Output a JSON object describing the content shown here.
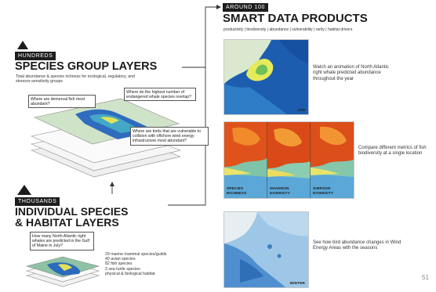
{
  "smart_products": {
    "tag": "AROUND 100",
    "title": "SMART DATA PRODUCTS",
    "subtitle": "productivity | biodiversity | abundance | vulnerability | rarity | habitat drivers",
    "panel1": {
      "caption": "Watch an animation of North Atlantic right whale predicted abundance throughout the year",
      "label": "JAN"
    },
    "panel2": {
      "caption": "Compare different metrics of fish biodiversity at a single location",
      "labels": [
        "SPECIES RICHNESS",
        "SHANNON DIVERSITY",
        "SIMPSON DIVERSITY"
      ]
    },
    "panel3": {
      "caption": "See how bird abundance changes in Wind Energy Areas with the seasons",
      "label": "WINTER"
    }
  },
  "species_group": {
    "tag": "HUNDREDS",
    "title": "SPECIES GROUP LAYERS",
    "subtitle": "Total abundance & species richness for ecological, regulatory, and stressor-sensitivity groups",
    "questions": [
      "Where are demersal fish most abundant?",
      "Where do the highest number of endangered whale species overlap?",
      "Where are birds that are vulnerable to collision with offshore wind energy infrastructure most abundant?"
    ]
  },
  "individual": {
    "tag": "THOUSANDS",
    "title_line1": "INDIVIDUAL SPECIES",
    "title_line2": "& HABITAT LAYERS",
    "question": "How many North Atlantic right whales are predicted in the Gulf of Maine in July?",
    "list": [
      "29 marine mammal species/guilds",
      "40 avian species",
      "82 fish species",
      "3 sea turtle species",
      "physical & biological habitat"
    ]
  },
  "page_number": "51",
  "colors": {
    "ink": "#1d1d1d",
    "ocean": "#1f63b5",
    "land": "#d8e6c9",
    "hot": "#e0521b"
  }
}
